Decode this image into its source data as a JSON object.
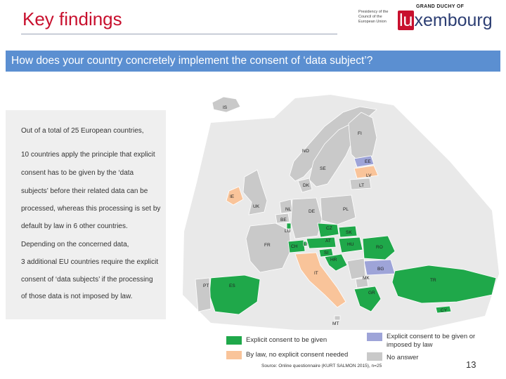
{
  "header": {
    "title": "Key findings",
    "logo": {
      "presidency_text": "Presidency of the Council of the European Union",
      "grand_duchy": "GRAND DUCHY OF",
      "brand_prefix": "lu",
      "brand_suffix": "xembourg"
    }
  },
  "banner": {
    "question": "How does your country concretely implement the consent of ‘data subject’?"
  },
  "summary": {
    "lines": [
      "Out of a total of 25 European countries,",
      "10 countries apply the principle that explicit",
      "consent has to be given by the ‘data",
      "subjects’ before their related data can be",
      "processed, whereas this processing is set by",
      "default by law in 6 other countries.",
      "Depending on the concerned data,",
      "3 additional EU countries require the explicit",
      "consent of ‘data subjects’ if the processing",
      "of those data is not imposed by law."
    ]
  },
  "map": {
    "colors": {
      "explicit": "#1fa84a",
      "by_law": "#f9c49a",
      "explicit_or_law": "#9ea4d8",
      "no_answer": "#c9c9c9",
      "background": "#e9e9e9"
    },
    "labels": {
      "IS": "IS",
      "FI": "FI",
      "NO": "NO",
      "EE": "EE",
      "SE": "SE",
      "LV": "LV",
      "DK": "DK",
      "LT": "LT",
      "IE": "IE",
      "UK": "UK",
      "NL": "NL",
      "DE": "DE",
      "PL": "PL",
      "BE": "BE",
      "LU": "LU",
      "CZ": "CZ",
      "SK": "SK",
      "FR": "FR",
      "AT": "AT",
      "CH": "CH",
      "LI": "LI",
      "HU": "HU",
      "RO": "RO",
      "SI": "SI",
      "HR": "HR",
      "BG": "BG",
      "IT": "IT",
      "MK": "MK",
      "PT": "PT",
      "ES": "ES",
      "TR": "TR",
      "GR": "GR",
      "CY": "CY",
      "MT": "MT"
    }
  },
  "legend": {
    "explicit": "Explicit consent to be given",
    "by_law": "By law, no explicit consent needed",
    "explicit_or_law": "Explicit consent to be given or imposed by law",
    "no_answer": "No answer"
  },
  "footer": {
    "source": "Source: Online questionnaire (KURT SALMON 2015), n=25",
    "page_number": "13"
  }
}
